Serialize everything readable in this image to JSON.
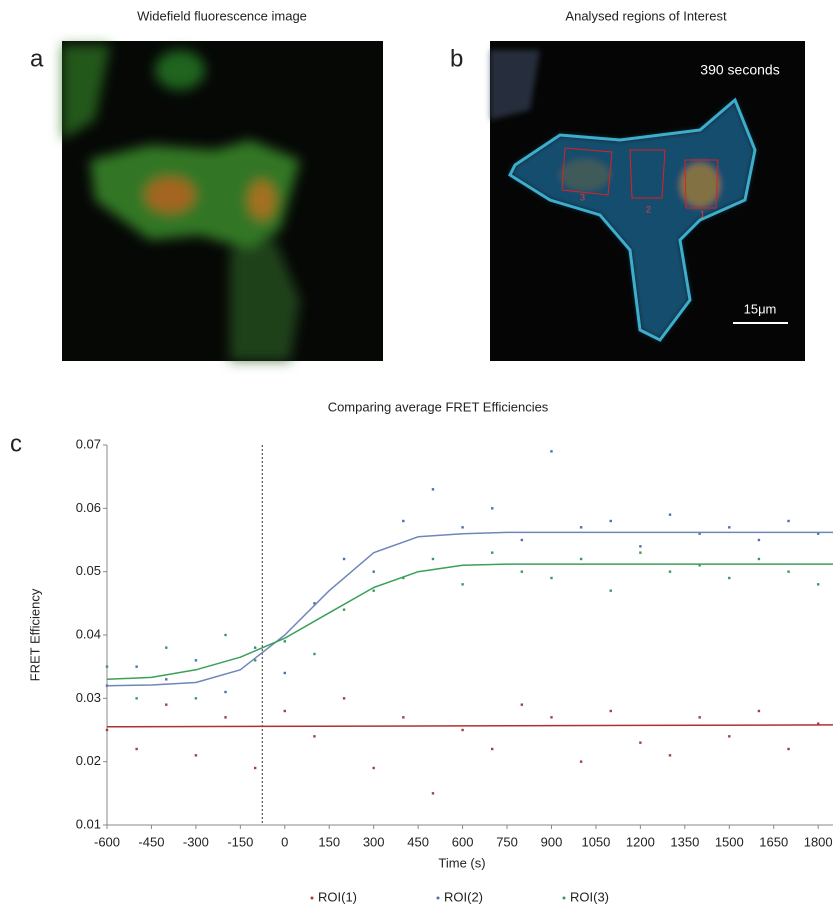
{
  "panels": [
    {
      "letter": "a",
      "title": "Widefield fluorescence image"
    },
    {
      "letter": "b",
      "title": "Analysed regions of Interest",
      "time_label": "390 seconds",
      "scale_label": "15μm",
      "roi_labels": [
        "3",
        "2",
        "1"
      ]
    }
  ],
  "chart_data": {
    "type": "scatter",
    "panel_letter": "c",
    "title": "Comparing average FRET Efficiencies",
    "x_label": "Time (s)",
    "y_label": "FRET Efficiency",
    "xlim": [
      -600,
      1850
    ],
    "ylim": [
      0.01,
      0.07
    ],
    "xticks": [
      -600,
      -450,
      -300,
      -150,
      0,
      150,
      300,
      450,
      600,
      750,
      900,
      1050,
      1200,
      1350,
      1500,
      1650,
      1800
    ],
    "yticks": [
      0.01,
      0.02,
      0.03,
      0.04,
      0.05,
      0.06,
      0.07
    ],
    "vline": -76,
    "series": [
      {
        "name": "ROI(1)",
        "color": "#a0403f",
        "x": [
          -600,
          -500,
          -400,
          -300,
          -200,
          -100,
          0,
          100,
          200,
          300,
          400,
          500,
          600,
          700,
          800,
          900,
          1000,
          1100,
          1200,
          1300,
          1400,
          1500,
          1600,
          1700,
          1800
        ],
        "values": [
          0.025,
          0.022,
          0.029,
          0.021,
          0.027,
          0.019,
          0.028,
          0.024,
          0.03,
          0.019,
          0.027,
          0.015,
          0.025,
          0.022,
          0.029,
          0.027,
          0.02,
          0.028,
          0.023,
          0.021,
          0.027,
          0.024,
          0.028,
          0.022,
          0.026
        ]
      },
      {
        "name": "ROI(2)",
        "color": "#4a72a8",
        "x": [
          -600,
          -500,
          -400,
          -300,
          -200,
          -100,
          0,
          100,
          200,
          300,
          400,
          500,
          600,
          700,
          800,
          900,
          1000,
          1100,
          1200,
          1300,
          1400,
          1500,
          1600,
          1700,
          1800
        ],
        "values": [
          0.032,
          0.035,
          0.033,
          0.036,
          0.031,
          0.038,
          0.034,
          0.045,
          0.052,
          0.05,
          0.058,
          0.063,
          0.057,
          0.06,
          0.055,
          0.069,
          0.057,
          0.058,
          0.054,
          0.059,
          0.056,
          0.057,
          0.055,
          0.058,
          0.056
        ]
      },
      {
        "name": "ROI(3)",
        "color": "#3a9a5a",
        "x": [
          -600,
          -500,
          -400,
          -300,
          -200,
          -100,
          0,
          100,
          200,
          300,
          400,
          500,
          600,
          700,
          800,
          900,
          1000,
          1100,
          1200,
          1300,
          1400,
          1500,
          1600,
          1700,
          1800
        ],
        "values": [
          0.035,
          0.03,
          0.038,
          0.03,
          0.04,
          0.036,
          0.039,
          0.037,
          0.044,
          0.047,
          0.049,
          0.052,
          0.048,
          0.053,
          0.05,
          0.049,
          0.052,
          0.047,
          0.053,
          0.05,
          0.051,
          0.049,
          0.052,
          0.05,
          0.048
        ]
      }
    ],
    "fits": [
      {
        "color": "#b03030",
        "x": [
          -600,
          1850
        ],
        "values": [
          0.0255,
          0.0258
        ]
      },
      {
        "color": "#6f86b8",
        "x": [
          -600,
          -450,
          -300,
          -150,
          0,
          150,
          300,
          450,
          600,
          750,
          1850
        ],
        "values": [
          0.032,
          0.0321,
          0.0325,
          0.0345,
          0.04,
          0.047,
          0.053,
          0.0555,
          0.056,
          0.0562,
          0.0562
        ]
      },
      {
        "color": "#3aa05a",
        "x": [
          -600,
          -450,
          -300,
          -150,
          0,
          150,
          300,
          450,
          600,
          750,
          1850
        ],
        "values": [
          0.033,
          0.0333,
          0.0345,
          0.0365,
          0.0395,
          0.0435,
          0.0475,
          0.05,
          0.051,
          0.0512,
          0.0512
        ]
      }
    ]
  }
}
